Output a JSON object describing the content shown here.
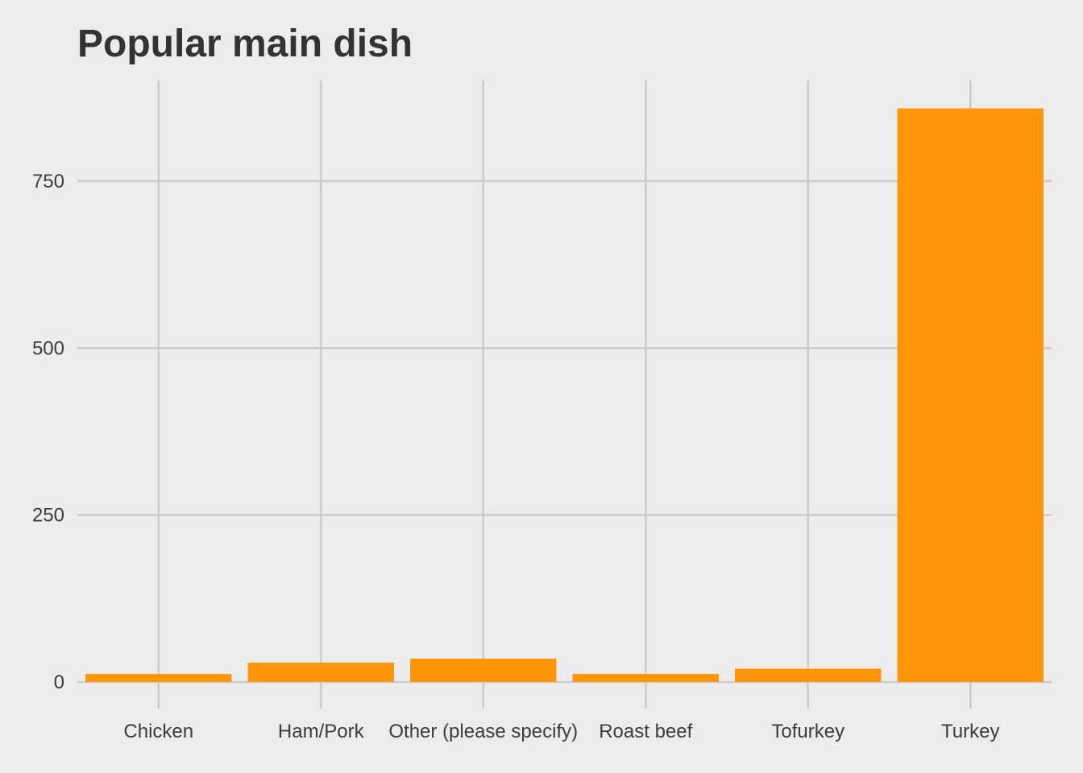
{
  "chart_data": {
    "type": "bar",
    "title": "Popular main dish",
    "xlabel": "",
    "ylabel": "",
    "categories": [
      "Chicken",
      "Ham/Pork",
      "Other (please specify)",
      "Roast beef",
      "Tofurkey",
      "Turkey"
    ],
    "values": [
      12,
      29,
      35,
      12,
      20,
      859
    ],
    "ylim": [
      0,
      900
    ],
    "yticks": [
      0,
      250,
      500,
      750
    ],
    "grid": true,
    "legend": "none",
    "bar_color": "#ff9508",
    "grid_color": "#cbcbcb",
    "background_color": "#ececec",
    "text_color": "#333333"
  }
}
